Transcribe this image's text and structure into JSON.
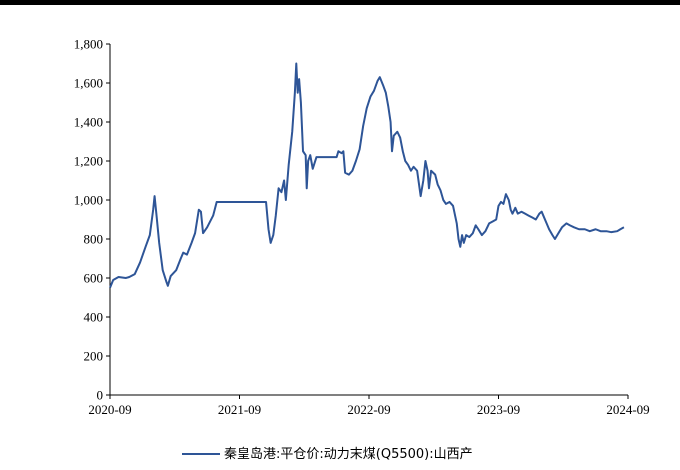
{
  "chart_data": {
    "type": "line",
    "title": "",
    "xlabel": "",
    "ylabel": "",
    "ylim": [
      0,
      1800
    ],
    "y_ticks": [
      "0",
      "200",
      "400",
      "600",
      "800",
      "1,000",
      "1,200",
      "1,400",
      "1,600",
      "1,800"
    ],
    "y_tick_values": [
      0,
      200,
      400,
      600,
      800,
      1000,
      1200,
      1400,
      1600,
      1800
    ],
    "x_ticks": [
      "2020-09",
      "2021-09",
      "2022-09",
      "2023-09",
      "2024-09"
    ],
    "x_tick_values": [
      "2020-09",
      "2021-09",
      "2022-09",
      "2023-09",
      "2024-09"
    ],
    "xlim": [
      "2020-09",
      "2024-09"
    ],
    "grid": false,
    "legend_position": "bottom-center",
    "series": [
      {
        "name": "秦皇岛港:平仓价:动力末煤(Q5500):山西产",
        "color": "#2E5597",
        "points": [
          [
            "2020-09-01",
            550
          ],
          [
            "2020-09-10",
            590
          ],
          [
            "2020-09-25",
            605
          ],
          [
            "2020-10-15",
            600
          ],
          [
            "2020-10-25",
            605
          ],
          [
            "2020-11-10",
            620
          ],
          [
            "2020-11-25",
            680
          ],
          [
            "2020-12-10",
            760
          ],
          [
            "2020-12-22",
            820
          ],
          [
            "2021-01-01",
            950
          ],
          [
            "2021-01-05",
            1020
          ],
          [
            "2021-01-10",
            930
          ],
          [
            "2021-01-18",
            780
          ],
          [
            "2021-01-28",
            640
          ],
          [
            "2021-02-08",
            580
          ],
          [
            "2021-02-12",
            560
          ],
          [
            "2021-02-20",
            610
          ],
          [
            "2021-03-05",
            640
          ],
          [
            "2021-03-18",
            700
          ],
          [
            "2021-03-25",
            730
          ],
          [
            "2021-04-05",
            720
          ],
          [
            "2021-04-18",
            780
          ],
          [
            "2021-04-28",
            830
          ],
          [
            "2021-05-08",
            950
          ],
          [
            "2021-05-14",
            940
          ],
          [
            "2021-05-20",
            830
          ],
          [
            "2021-06-01",
            860
          ],
          [
            "2021-06-18",
            920
          ],
          [
            "2021-06-28",
            990
          ],
          [
            "2021-07-15",
            990
          ],
          [
            "2021-08-15",
            990
          ],
          [
            "2021-09-15",
            990
          ],
          [
            "2021-10-15",
            990
          ],
          [
            "2021-11-15",
            990
          ],
          [
            "2021-11-22",
            850
          ],
          [
            "2021-11-28",
            780
          ],
          [
            "2021-12-05",
            820
          ],
          [
            "2021-12-12",
            920
          ],
          [
            "2021-12-20",
            1060
          ],
          [
            "2021-12-28",
            1040
          ],
          [
            "2022-01-05",
            1100
          ],
          [
            "2022-01-10",
            1000
          ],
          [
            "2022-01-18",
            1180
          ],
          [
            "2022-01-28",
            1350
          ],
          [
            "2022-02-05",
            1550
          ],
          [
            "2022-02-09",
            1700
          ],
          [
            "2022-02-13",
            1550
          ],
          [
            "2022-02-17",
            1620
          ],
          [
            "2022-02-22",
            1500
          ],
          [
            "2022-02-28",
            1250
          ],
          [
            "2022-03-05",
            1230
          ],
          [
            "2022-03-08",
            1060
          ],
          [
            "2022-03-12",
            1200
          ],
          [
            "2022-03-18",
            1230
          ],
          [
            "2022-03-25",
            1160
          ],
          [
            "2022-04-05",
            1220
          ],
          [
            "2022-05-01",
            1220
          ],
          [
            "2022-06-01",
            1220
          ],
          [
            "2022-06-06",
            1250
          ],
          [
            "2022-06-15",
            1240
          ],
          [
            "2022-06-20",
            1250
          ],
          [
            "2022-06-25",
            1140
          ],
          [
            "2022-07-05",
            1130
          ],
          [
            "2022-07-15",
            1150
          ],
          [
            "2022-07-25",
            1200
          ],
          [
            "2022-08-05",
            1260
          ],
          [
            "2022-08-15",
            1380
          ],
          [
            "2022-08-25",
            1470
          ],
          [
            "2022-09-05",
            1530
          ],
          [
            "2022-09-15",
            1560
          ],
          [
            "2022-09-25",
            1610
          ],
          [
            "2022-10-01",
            1630
          ],
          [
            "2022-10-10",
            1590
          ],
          [
            "2022-10-18",
            1550
          ],
          [
            "2022-10-25",
            1480
          ],
          [
            "2022-11-01",
            1400
          ],
          [
            "2022-11-05",
            1250
          ],
          [
            "2022-11-10",
            1330
          ],
          [
            "2022-11-20",
            1350
          ],
          [
            "2022-11-28",
            1320
          ],
          [
            "2022-12-05",
            1250
          ],
          [
            "2022-12-12",
            1200
          ],
          [
            "2022-12-20",
            1180
          ],
          [
            "2022-12-28",
            1150
          ],
          [
            "2023-01-05",
            1170
          ],
          [
            "2023-01-15",
            1150
          ],
          [
            "2023-01-25",
            1020
          ],
          [
            "2023-02-02",
            1100
          ],
          [
            "2023-02-08",
            1200
          ],
          [
            "2023-02-14",
            1150
          ],
          [
            "2023-02-18",
            1060
          ],
          [
            "2023-02-24",
            1150
          ],
          [
            "2023-03-05",
            1130
          ],
          [
            "2023-03-12",
            1080
          ],
          [
            "2023-03-20",
            1050
          ],
          [
            "2023-03-28",
            1000
          ],
          [
            "2023-04-05",
            980
          ],
          [
            "2023-04-15",
            990
          ],
          [
            "2023-04-25",
            970
          ],
          [
            "2023-05-05",
            880
          ],
          [
            "2023-05-10",
            800
          ],
          [
            "2023-05-15",
            760
          ],
          [
            "2023-05-20",
            820
          ],
          [
            "2023-05-25",
            780
          ],
          [
            "2023-06-01",
            820
          ],
          [
            "2023-06-10",
            810
          ],
          [
            "2023-06-20",
            830
          ],
          [
            "2023-06-28",
            870
          ],
          [
            "2023-07-05",
            850
          ],
          [
            "2023-07-15",
            820
          ],
          [
            "2023-07-25",
            840
          ],
          [
            "2023-08-05",
            880
          ],
          [
            "2023-08-15",
            890
          ],
          [
            "2023-08-25",
            900
          ],
          [
            "2023-09-01",
            970
          ],
          [
            "2023-09-08",
            990
          ],
          [
            "2023-09-15",
            980
          ],
          [
            "2023-09-22",
            1030
          ],
          [
            "2023-09-30",
            1000
          ],
          [
            "2023-10-05",
            950
          ],
          [
            "2023-10-10",
            930
          ],
          [
            "2023-10-18",
            960
          ],
          [
            "2023-10-25",
            930
          ],
          [
            "2023-11-05",
            940
          ],
          [
            "2023-11-15",
            930
          ],
          [
            "2023-11-25",
            920
          ],
          [
            "2023-12-05",
            910
          ],
          [
            "2023-12-15",
            900
          ],
          [
            "2023-12-25",
            930
          ],
          [
            "2024-01-01",
            940
          ],
          [
            "2024-01-08",
            910
          ],
          [
            "2024-01-15",
            880
          ],
          [
            "2024-01-22",
            850
          ],
          [
            "2024-02-01",
            820
          ],
          [
            "2024-02-08",
            800
          ],
          [
            "2024-02-18",
            830
          ],
          [
            "2024-02-28",
            860
          ],
          [
            "2024-03-10",
            880
          ],
          [
            "2024-03-20",
            870
          ],
          [
            "2024-04-01",
            860
          ],
          [
            "2024-04-15",
            850
          ],
          [
            "2024-05-01",
            850
          ],
          [
            "2024-05-15",
            840
          ],
          [
            "2024-06-01",
            850
          ],
          [
            "2024-06-15",
            840
          ],
          [
            "2024-07-01",
            840
          ],
          [
            "2024-07-15",
            835
          ],
          [
            "2024-08-01",
            840
          ],
          [
            "2024-08-10",
            850
          ],
          [
            "2024-08-20",
            860
          ]
        ]
      }
    ]
  }
}
